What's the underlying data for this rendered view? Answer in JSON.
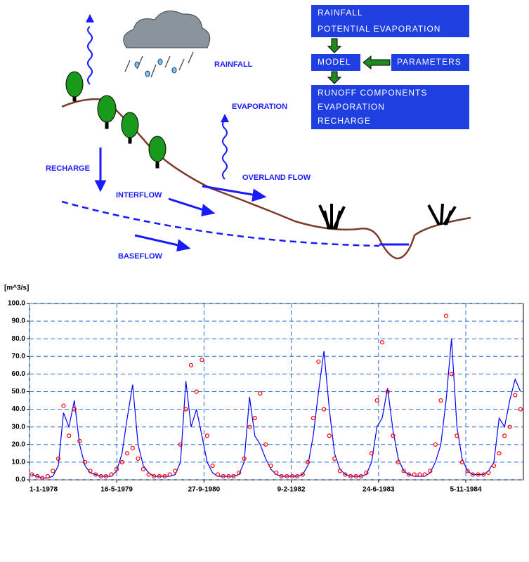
{
  "diagram": {
    "labels": {
      "rainfall": "RAINFALL",
      "evaporation": "EVAPORATION",
      "recharge": "RECHARGE",
      "interflow": "INTERFLOW",
      "overland_flow": "OVERLAND FLOW",
      "baseflow": "BASEFLOW"
    },
    "boxes": {
      "inputs": [
        "RAINFALL",
        "POTENTIAL EVAPORATION"
      ],
      "model": "MODEL",
      "parameters": "PARAMETERS",
      "outputs": [
        "RUNOFF COMPONENTS",
        "EVAPORATION",
        "RECHARGE"
      ]
    }
  },
  "chart_data": {
    "type": "line",
    "ylabel": "[m^3/s]",
    "x": [
      "1978-01-15",
      "1978-02-15",
      "1978-03-15",
      "1978-04-15",
      "1978-05-15",
      "1978-06-15",
      "1978-07-15",
      "1978-08-15",
      "1978-09-15",
      "1978-10-15",
      "1978-11-15",
      "1978-12-15",
      "1979-01-15",
      "1979-02-15",
      "1979-03-15",
      "1979-04-15",
      "1979-05-15",
      "1979-06-15",
      "1979-07-15",
      "1979-08-15",
      "1979-09-15",
      "1979-10-15",
      "1979-11-15",
      "1979-12-15",
      "1980-01-15",
      "1980-02-15",
      "1980-03-15",
      "1980-04-15",
      "1980-05-15",
      "1980-06-15",
      "1980-07-15",
      "1980-08-15",
      "1980-09-15",
      "1980-10-15",
      "1980-11-15",
      "1980-12-15",
      "1981-01-15",
      "1981-02-15",
      "1981-03-15",
      "1981-04-15",
      "1981-05-15",
      "1981-06-15",
      "1981-07-15",
      "1981-08-15",
      "1981-09-15",
      "1981-10-15",
      "1981-11-15",
      "1981-12-15",
      "1982-01-15",
      "1982-02-15",
      "1982-03-15",
      "1982-04-15",
      "1982-05-15",
      "1982-06-15",
      "1982-07-15",
      "1982-08-15",
      "1982-09-15",
      "1982-10-15",
      "1982-11-15",
      "1982-12-15",
      "1983-01-15",
      "1983-02-15",
      "1983-03-15",
      "1983-04-15",
      "1983-05-15",
      "1983-06-15",
      "1983-07-15",
      "1983-08-15",
      "1983-09-15",
      "1983-10-15",
      "1983-11-15",
      "1983-12-15",
      "1984-01-15",
      "1984-02-15",
      "1984-03-15",
      "1984-04-15",
      "1984-05-15",
      "1984-06-15",
      "1984-07-15",
      "1984-08-15",
      "1984-09-15",
      "1984-10-15",
      "1984-11-15",
      "1984-12-15",
      "1985-01-15",
      "1985-02-15",
      "1985-03-15",
      "1985-04-15",
      "1985-05-15",
      "1985-06-15",
      "1985-07-15",
      "1985-08-15",
      "1985-09-15"
    ],
    "series": [
      {
        "color": "#0000ff",
        "mode": "line",
        "values": [
          3,
          2,
          1,
          1,
          2,
          8,
          38,
          30,
          45,
          20,
          8,
          4,
          3,
          2,
          2,
          2,
          5,
          15,
          35,
          54,
          20,
          8,
          4,
          2,
          2,
          2,
          2,
          3,
          10,
          56,
          30,
          40,
          25,
          10,
          4,
          2,
          2,
          2,
          2,
          3,
          10,
          47,
          25,
          20,
          12,
          6,
          3,
          2,
          2,
          2,
          2,
          3,
          8,
          25,
          50,
          73,
          40,
          15,
          6,
          3,
          2,
          2,
          2,
          3,
          10,
          30,
          35,
          52,
          28,
          12,
          5,
          3,
          2,
          2,
          2,
          4,
          10,
          20,
          45,
          80,
          30,
          12,
          5,
          3,
          3,
          3,
          5,
          10,
          35,
          30,
          45,
          57,
          50
        ]
      },
      {
        "color": "#ff0000",
        "mode": "markers",
        "values": [
          3,
          2,
          1,
          2,
          5,
          12,
          42,
          25,
          40,
          22,
          10,
          5,
          3,
          2,
          2,
          3,
          6,
          10,
          15,
          18,
          12,
          6,
          3,
          2,
          2,
          2,
          3,
          5,
          20,
          40,
          65,
          50,
          68,
          25,
          8,
          3,
          2,
          2,
          2,
          4,
          12,
          30,
          35,
          49,
          20,
          8,
          4,
          2,
          2,
          2,
          2,
          3,
          10,
          35,
          67,
          40,
          25,
          12,
          5,
          3,
          2,
          2,
          2,
          4,
          15,
          45,
          78,
          50,
          25,
          10,
          5,
          3,
          3,
          3,
          3,
          5,
          20,
          45,
          93,
          60,
          25,
          10,
          5,
          3,
          3,
          3,
          4,
          8,
          15,
          25,
          30,
          48,
          40
        ]
      }
    ],
    "xlim": [
      "1978-01-01",
      "1985-10-01"
    ],
    "xticks": [
      {
        "value": "1978-01-01",
        "label": "1-1-1978"
      },
      {
        "value": "1979-05-16",
        "label": "16-5-1979"
      },
      {
        "value": "1980-09-27",
        "label": "27-9-1980"
      },
      {
        "value": "1982-02-09",
        "label": "9-2-1982"
      },
      {
        "value": "1983-06-24",
        "label": "24-6-1983"
      },
      {
        "value": "1984-11-05",
        "label": "5-11-1984"
      }
    ],
    "ylim": [
      0,
      100
    ],
    "yticks": [
      {
        "value": 0,
        "label": "0.0"
      },
      {
        "value": 10,
        "label": "10.0"
      },
      {
        "value": 20,
        "label": "20.0"
      },
      {
        "value": 30,
        "label": "30.0"
      },
      {
        "value": 40,
        "label": "40.0"
      },
      {
        "value": 50,
        "label": "50.0"
      },
      {
        "value": 60,
        "label": "60.0"
      },
      {
        "value": 70,
        "label": "70.0"
      },
      {
        "value": 80,
        "label": "80.0"
      },
      {
        "value": 90,
        "label": "90.0"
      },
      {
        "value": 100,
        "label": "100.0"
      }
    ],
    "grid": true
  }
}
